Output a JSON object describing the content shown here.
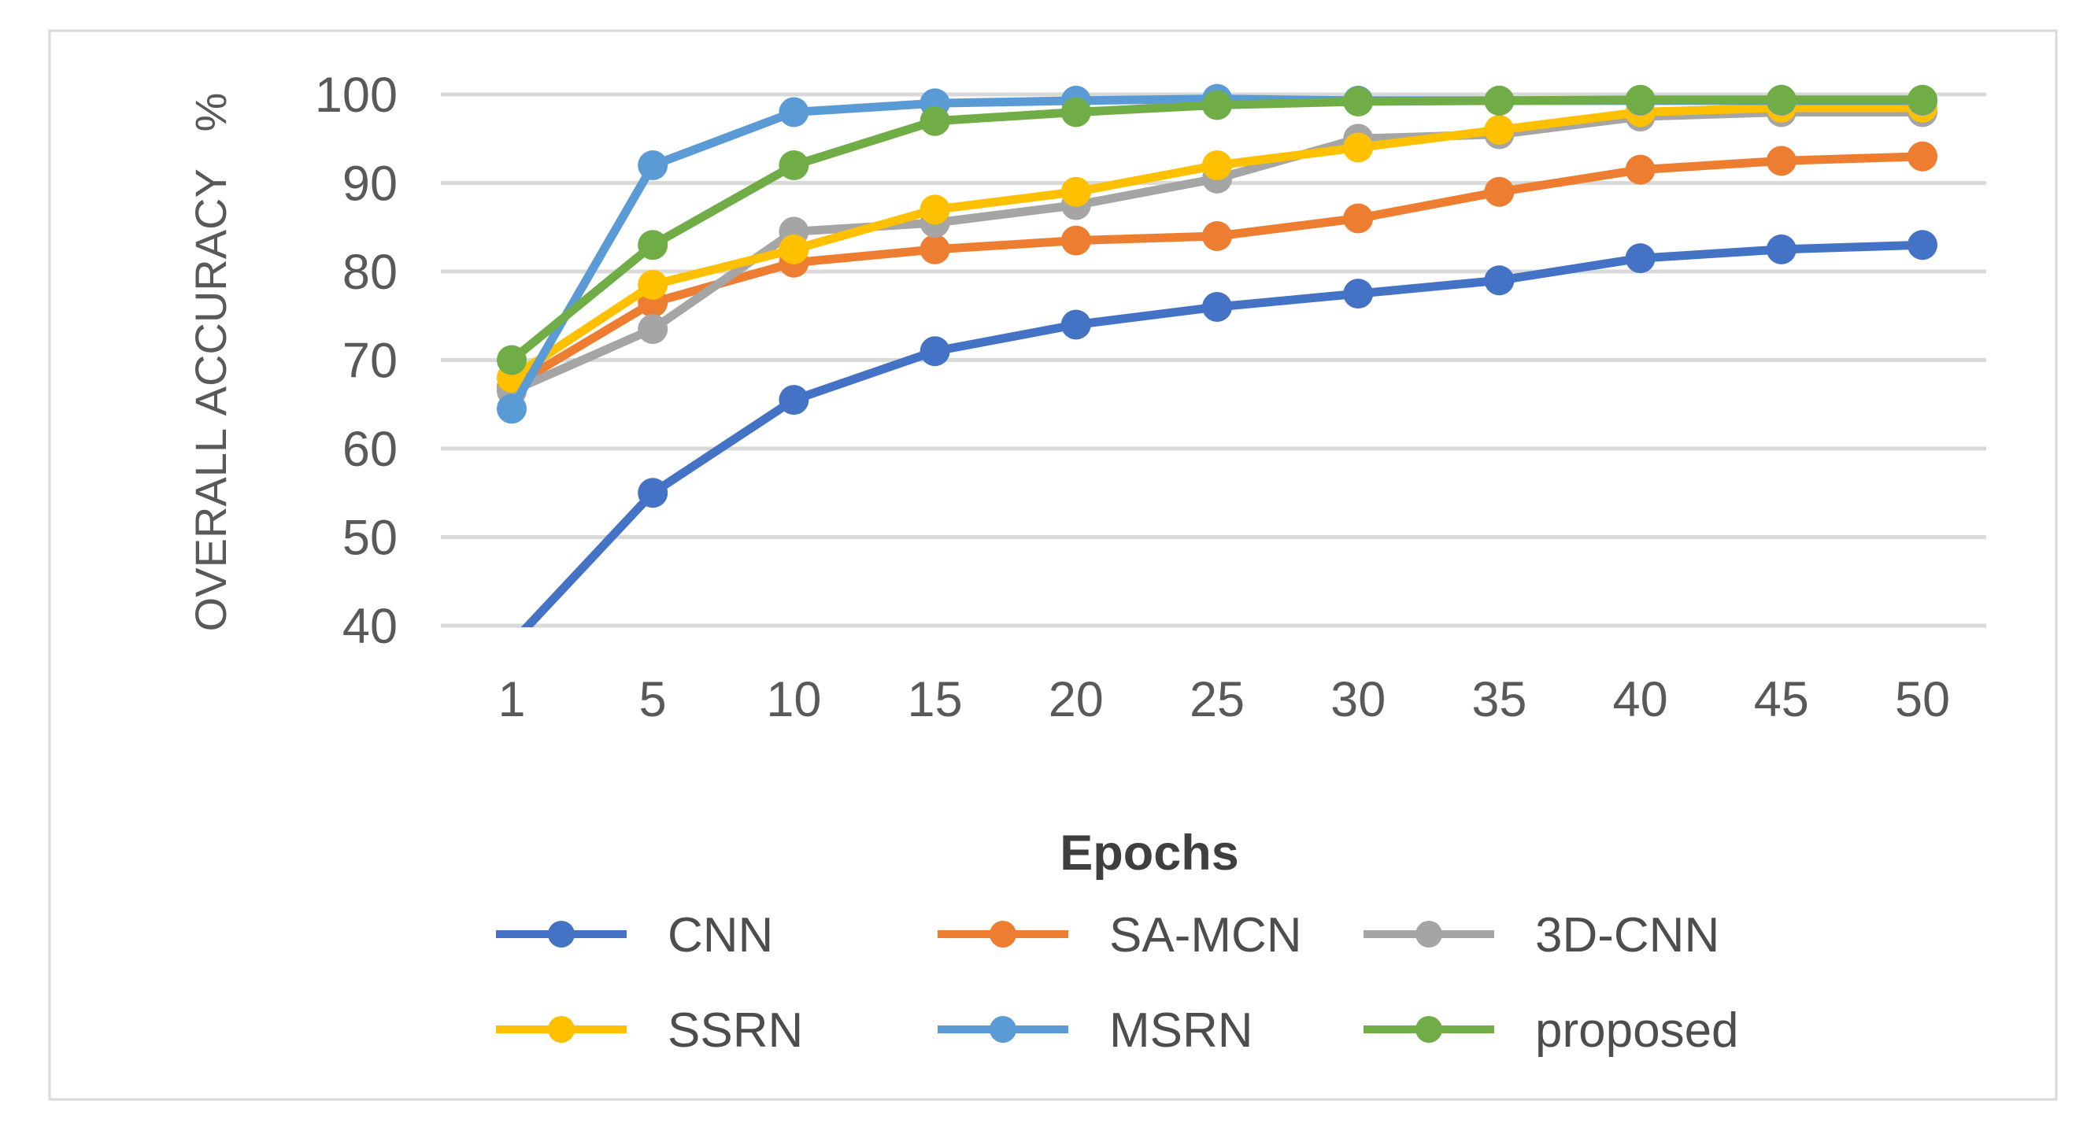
{
  "figure": {
    "background": "#ffffff",
    "frame_border_color": "#d9d9d9",
    "gridline_color": "#d9d9d9",
    "tick_label_color": "#595959",
    "axis_title_color": "#3f3f3f",
    "legend_label_color": "#4d4d4d"
  },
  "chart_data": {
    "type": "line",
    "title": "",
    "xlabel": "Epochs",
    "ylabel": "OVERALL ACCURACY   %",
    "categories": [
      "1",
      "5",
      "10",
      "15",
      "20",
      "25",
      "30",
      "35",
      "40",
      "45",
      "50"
    ],
    "y_ticks": [
      40,
      50,
      60,
      70,
      80,
      90,
      100
    ],
    "ylim": [
      40,
      100
    ],
    "grid": "horizontal",
    "legend_position": "bottom",
    "marker_style": "filled-circle",
    "series": [
      {
        "name": "CNN",
        "color": "#4472C4",
        "values": [
          38,
          55,
          65.5,
          71,
          74,
          76,
          77.5,
          79,
          81.5,
          82.5,
          83
        ]
      },
      {
        "name": "SA-MCN",
        "color": "#ED7D31",
        "values": [
          67,
          76.5,
          81,
          82.5,
          83.5,
          84,
          86,
          89,
          91.5,
          92.5,
          93
        ]
      },
      {
        "name": "3D-CNN",
        "color": "#A5A5A5",
        "values": [
          66.5,
          73.5,
          84.5,
          85.5,
          87.5,
          90.5,
          95,
          95.5,
          97.5,
          98,
          98
        ]
      },
      {
        "name": "SSRN",
        "color": "#FFC000",
        "values": [
          68,
          78.5,
          82.5,
          87,
          89,
          92,
          94,
          96,
          98,
          98.5,
          98.5
        ]
      },
      {
        "name": "MSRN",
        "color": "#5B9BD5",
        "values": [
          64.5,
          92,
          98,
          99,
          99.3,
          99.5,
          99.3,
          99.3,
          99.3,
          99.3,
          99.3
        ]
      },
      {
        "name": "proposed",
        "color": "#70AD47",
        "values": [
          70,
          83,
          92,
          97,
          98,
          98.8,
          99.2,
          99.3,
          99.4,
          99.4,
          99.4
        ]
      }
    ]
  }
}
